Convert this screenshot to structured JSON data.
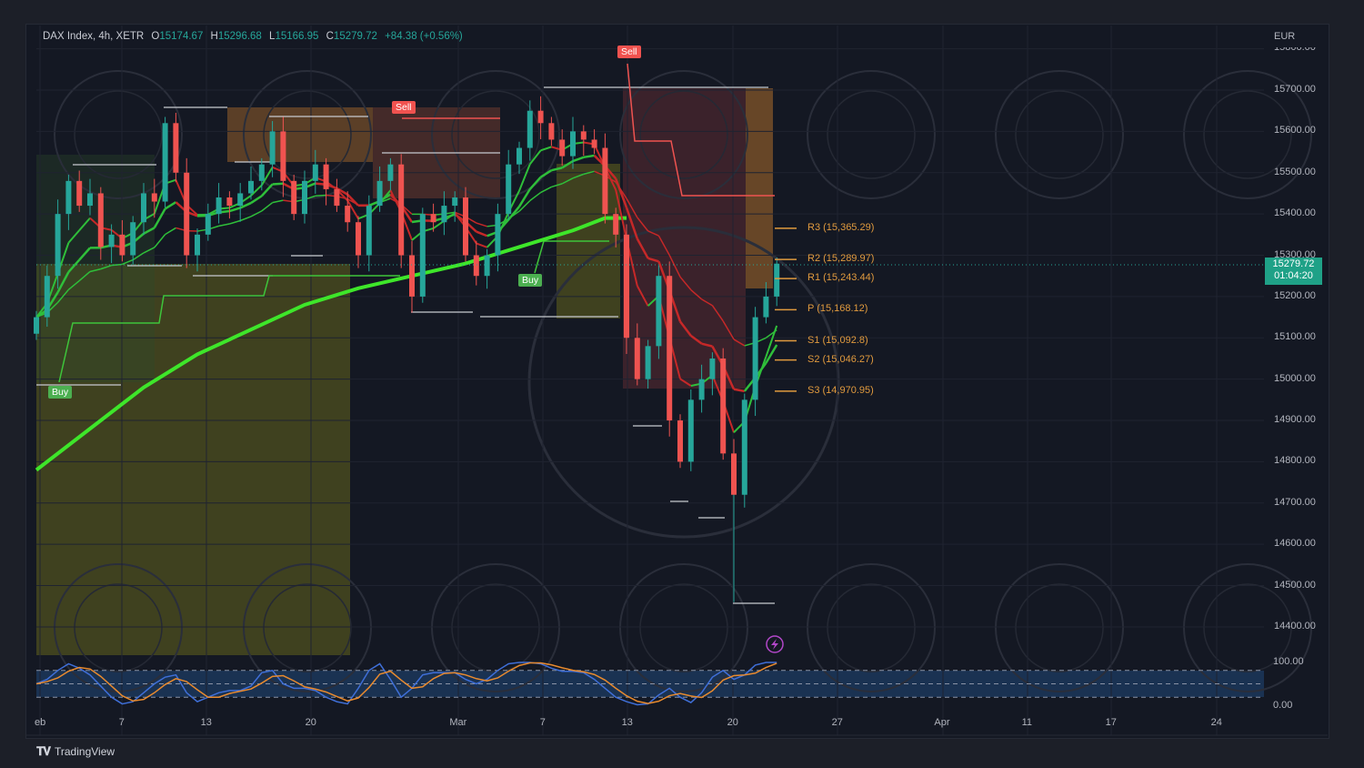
{
  "header": {
    "symbol": "DAX Index, 4h, XETR",
    "open_label": "O",
    "open": "15174.67",
    "high_label": "H",
    "high": "15296.68",
    "low_label": "L",
    "low": "15166.95",
    "close_label": "C",
    "close": "15279.72",
    "change": "+84.38 (+0.56%)"
  },
  "price_axis": {
    "currency": "EUR",
    "labels": [
      "15800.00",
      "15700.00",
      "15600.00",
      "15500.00",
      "15400.00",
      "15300.00",
      "15200.00",
      "15100.00",
      "15000.00",
      "14900.00",
      "14800.00",
      "14700.00",
      "14600.00",
      "14500.00",
      "14400.00"
    ],
    "current_price": "15279.72",
    "countdown": "01:04:20"
  },
  "oscillator_axis": {
    "labels": [
      "100.00",
      "0.00"
    ]
  },
  "time_axis": {
    "labels": [
      "eb",
      "7",
      "13",
      "20",
      "Mar",
      "7",
      "13",
      "20",
      "27",
      "Apr",
      "11",
      "17",
      "24"
    ]
  },
  "signals": [
    {
      "label": "Sell",
      "color": "#f0524f"
    },
    {
      "label": "Sell",
      "color": "#f0524f"
    },
    {
      "label": "Buy",
      "color": "#4caf50"
    },
    {
      "label": "Buy",
      "color": "#4caf50"
    }
  ],
  "pivots": [
    {
      "label": "R3 (15,365.29)",
      "value": 15365.29
    },
    {
      "label": "R2 (15,289.97)",
      "value": 15289.97
    },
    {
      "label": "R1 (15,243.44)",
      "value": 15243.44
    },
    {
      "label": "P (15,168.12)",
      "value": 15168.12
    },
    {
      "label": "S1 (15,092.8)",
      "value": 15092.8
    },
    {
      "label": "S2 (15,046.27)",
      "value": 15046.27
    },
    {
      "label": "S3 (14,970.95)",
      "value": 14970.95
    }
  ],
  "branding": {
    "logo_text": "TradingView"
  },
  "icons": {
    "lightning": "lightning-icon",
    "logo": "tradingview-logo-icon"
  },
  "colors": {
    "up": "#26a69a",
    "down": "#ef5350",
    "ma_long": "#3ee62a",
    "pivot": "#e09a3e",
    "k_line": "#3f6fd8",
    "d_line": "#e88a2e",
    "osc_band": "#1c3a5e"
  },
  "chart_data": {
    "type": "candlestick",
    "title": "DAX Index, 4h, XETR",
    "ylim": [
      14350,
      15820
    ],
    "closes": [
      15150,
      15250,
      15400,
      15480,
      15420,
      15450,
      15320,
      15350,
      15300,
      15380,
      15450,
      15430,
      15620,
      15500,
      15300,
      15350,
      15400,
      15440,
      15420,
      15450,
      15480,
      15520,
      15600,
      15480,
      15400,
      15480,
      15520,
      15460,
      15420,
      15380,
      15300,
      15420,
      15480,
      15520,
      15300,
      15200,
      15400,
      15380,
      15420,
      15440,
      15300,
      15250,
      15300,
      15400,
      15520,
      15560,
      15650,
      15620,
      15580,
      15540,
      15600,
      15580,
      15560,
      15400,
      15350,
      15100,
      15000,
      15080,
      15250,
      14900,
      14800,
      14950,
      15000,
      15050,
      14820,
      14720,
      14950,
      15150,
      15200,
      15279.72
    ],
    "ma_long": [
      [
        0,
        14780
      ],
      [
        5,
        14880
      ],
      [
        10,
        14980
      ],
      [
        15,
        15060
      ],
      [
        20,
        15120
      ],
      [
        25,
        15180
      ],
      [
        30,
        15220
      ],
      [
        35,
        15250
      ],
      [
        40,
        15280
      ],
      [
        45,
        15320
      ],
      [
        50,
        15360
      ],
      [
        53,
        15390
      ],
      [
        55,
        15390
      ]
    ],
    "oscillator": {
      "ylim": [
        0,
        100
      ],
      "bands": [
        80,
        50,
        20
      ],
      "k": [
        50,
        60,
        80,
        95,
        85,
        70,
        45,
        20,
        5,
        10,
        30,
        50,
        65,
        70,
        30,
        10,
        20,
        30,
        35,
        35,
        45,
        75,
        80,
        50,
        40,
        40,
        35,
        20,
        10,
        5,
        40,
        80,
        95,
        60,
        20,
        40,
        70,
        75,
        75,
        75,
        60,
        50,
        60,
        80,
        95,
        98,
        98,
        95,
        85,
        78,
        78,
        75,
        60,
        40,
        20,
        10,
        3,
        5,
        25,
        40,
        20,
        8,
        30,
        65,
        80,
        60,
        70,
        92,
        98,
        98
      ]
    }
  }
}
